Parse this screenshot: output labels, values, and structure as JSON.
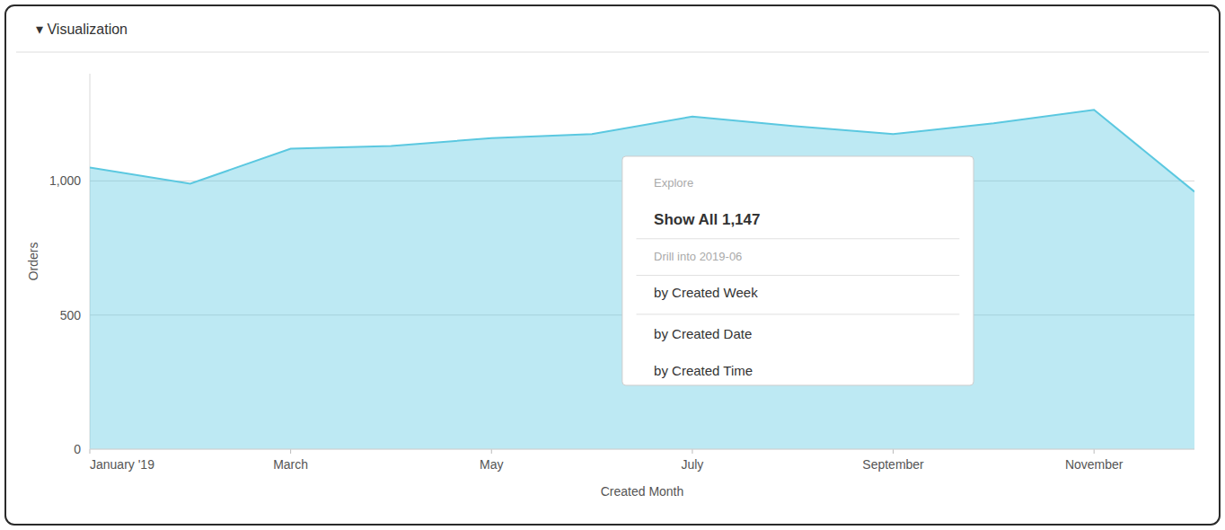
{
  "chart_data": {
    "type": "area",
    "title": "▾  Visualization",
    "x_label": "Created Month",
    "y_label": "Orders",
    "x": [
      0,
      1,
      2,
      3,
      4,
      5,
      6,
      7,
      8,
      9,
      10,
      11
    ],
    "values": [
      1050,
      990,
      1120,
      1130,
      1160,
      1175,
      1240,
      1205,
      1175,
      1215,
      1265,
      960
    ],
    "color": "#5bc8e0",
    "xlim": [
      0,
      11
    ],
    "xticks": [
      {
        "value": 0,
        "label": "January '19"
      },
      {
        "value": 2,
        "label": "March"
      },
      {
        "value": 4,
        "label": "May"
      },
      {
        "value": 6,
        "label": "July"
      },
      {
        "value": 8,
        "label": "September"
      },
      {
        "value": 10,
        "label": "November"
      }
    ],
    "ylim": [
      0,
      1400
    ],
    "yticks": [
      0,
      500,
      {
        "value": 1000,
        "label": "1,000"
      }
    ],
    "grid": true,
    "annotations": [
      "Explore",
      "Show All 1,147",
      "Drill into 2019-06",
      "by Created Week",
      "by Created Date",
      "by Created Time"
    ]
  }
}
